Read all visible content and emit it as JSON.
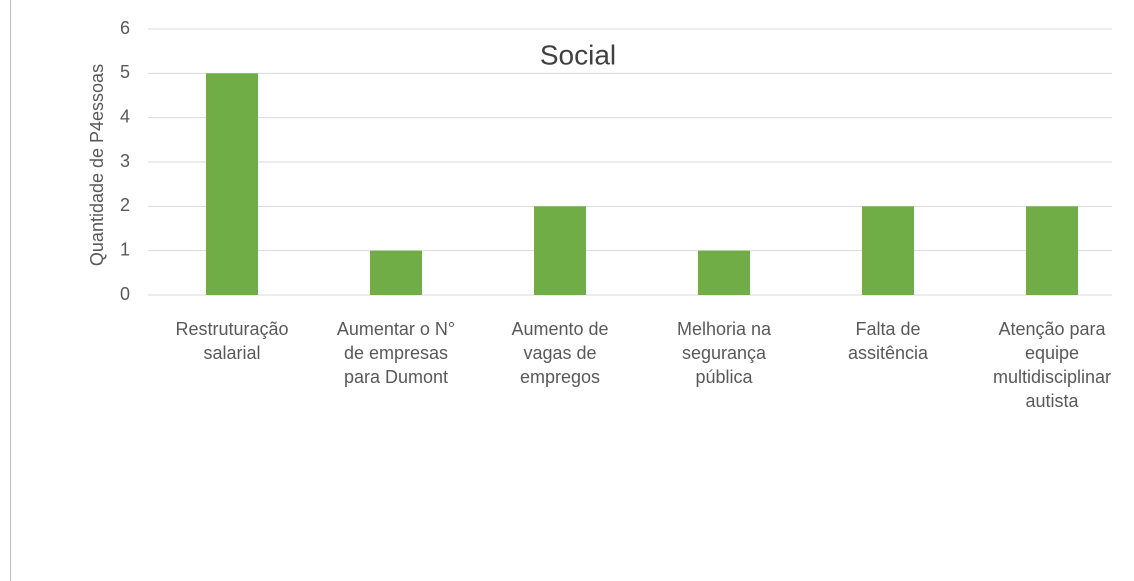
{
  "chart_data": {
    "type": "bar",
    "title": "Social",
    "y_label": "Quantidade de P4essoas",
    "categories": [
      "Restruturação salarial",
      "Aumentar o N° de empresas para Dumont",
      "Aumento de vagas de empregos",
      "Melhoria na segurança pública",
      "Falta de assitência",
      "Atenção para equipe multidisciplinar autista"
    ],
    "values": [
      5,
      1,
      2,
      1,
      2,
      2
    ],
    "color": "#70ad47",
    "ylim": [
      0,
      6
    ],
    "yticks": [
      0,
      1,
      2,
      3,
      4,
      5,
      6
    ],
    "grid": true
  }
}
